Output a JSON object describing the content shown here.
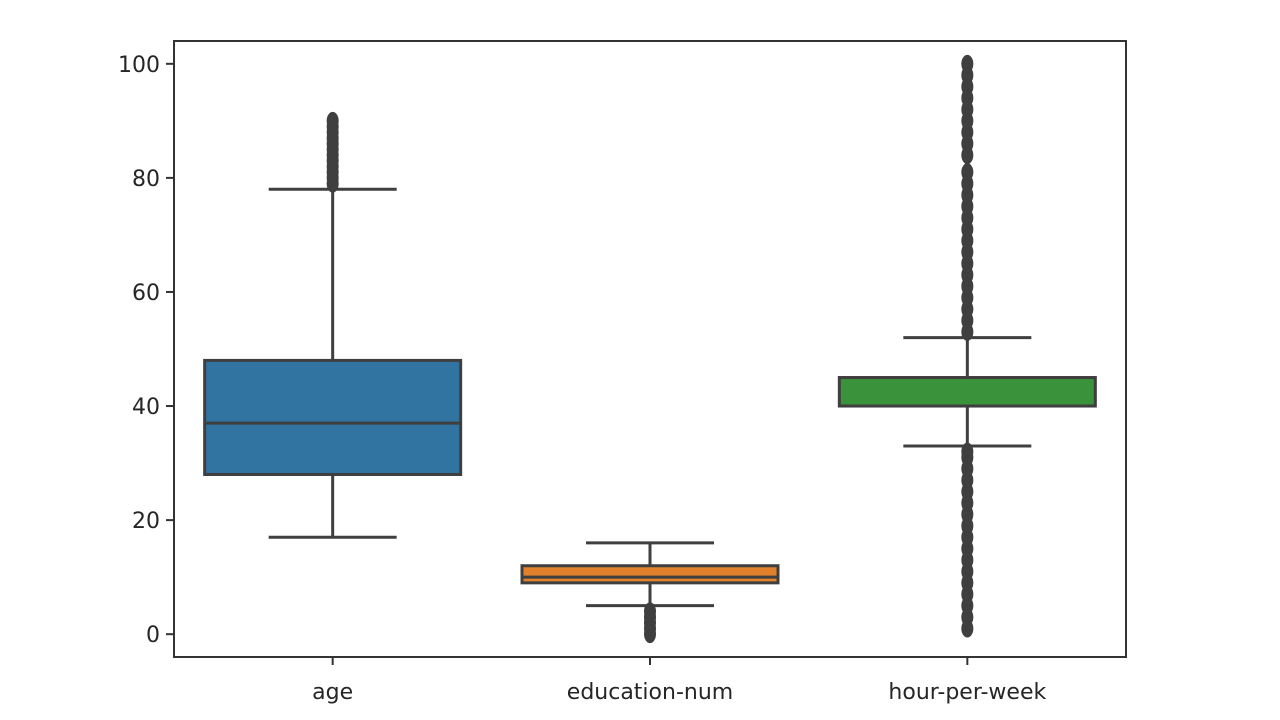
{
  "chart_data": {
    "type": "boxplot",
    "title": "",
    "xlabel": "",
    "ylabel": "",
    "ylim": [
      -4,
      104
    ],
    "yticks": [
      0,
      20,
      40,
      60,
      80,
      100
    ],
    "grid": false,
    "legend": "none",
    "categories": [
      "age",
      "education-num",
      "hour-per-week"
    ],
    "boxes": [
      {
        "category": "age",
        "color": "#3274a1",
        "min": 17,
        "q1": 28,
        "median": 37,
        "q3": 48,
        "max": 78,
        "outliers": [
          79,
          80,
          81,
          82,
          83,
          84,
          85,
          86,
          87,
          88,
          89,
          90
        ]
      },
      {
        "category": "education-num",
        "color": "#e1812c",
        "min": 5,
        "q1": 9,
        "median": 10,
        "q3": 12,
        "max": 16,
        "outliers": [
          0,
          1,
          2,
          3,
          4
        ]
      },
      {
        "category": "hour-per-week",
        "color": "#3a923a",
        "min": 33,
        "q1": 40,
        "median": 40,
        "q3": 45,
        "max": 52,
        "outliers": [
          1,
          3,
          5,
          7,
          9,
          11,
          13,
          15,
          17,
          19,
          21,
          23,
          25,
          27,
          29,
          31,
          32,
          53,
          55,
          57,
          59,
          61,
          63,
          65,
          67,
          69,
          71,
          73,
          75,
          77,
          79,
          81,
          84,
          86,
          88,
          90,
          92,
          94,
          96,
          98,
          100
        ]
      }
    ]
  }
}
